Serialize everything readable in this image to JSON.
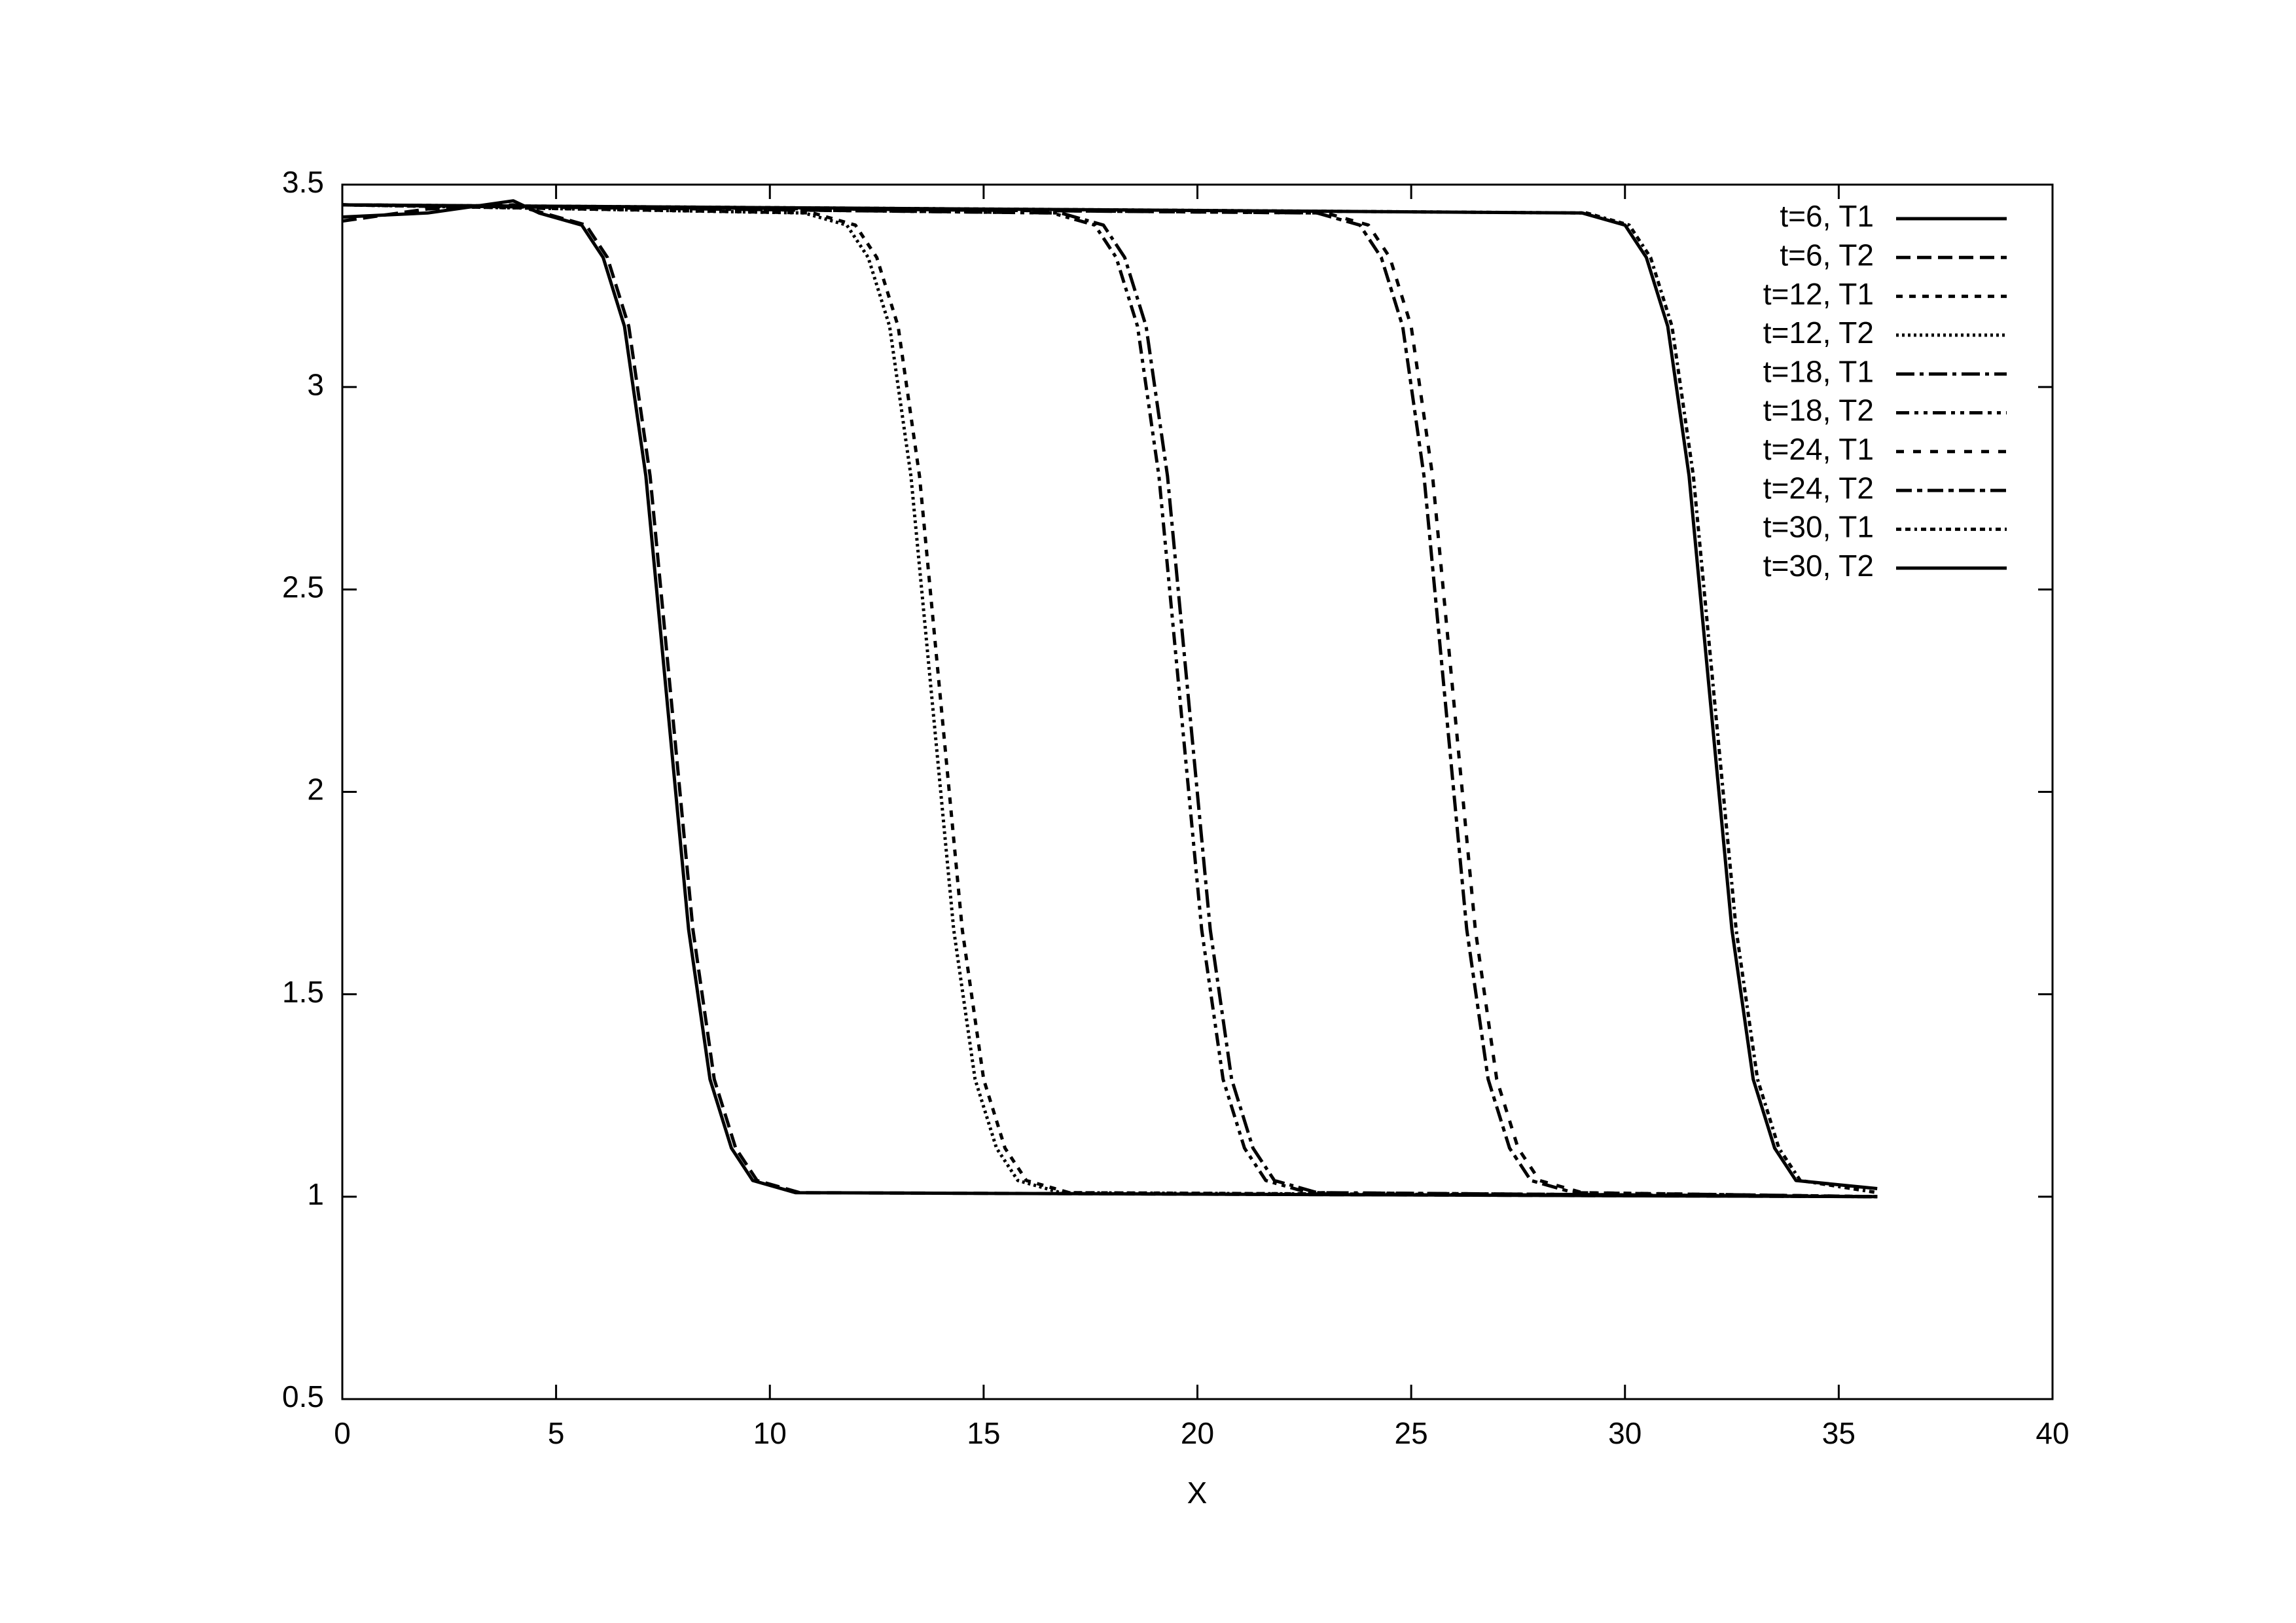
{
  "chart_data": {
    "type": "line",
    "xlabel": "X",
    "xlim": [
      0,
      40
    ],
    "xticks": [
      0,
      5,
      10,
      15,
      20,
      25,
      30,
      35,
      40
    ],
    "ylim": [
      0.5,
      3.5
    ],
    "yticks": [
      0.5,
      1,
      1.5,
      2,
      2.5,
      3,
      3.5
    ],
    "legend": "top-right",
    "series": [
      {
        "name": "t=6,  T1",
        "color": "#000000",
        "dash": "solid",
        "x": [
          0,
          2,
          4,
          4.6,
          5.6,
          6.1,
          6.6,
          7.1,
          7.6,
          8.1,
          8.6,
          9.1,
          9.6,
          10.6,
          35.9
        ],
        "values": [
          3.42,
          3.43,
          3.46,
          3.43,
          3.4,
          3.32,
          3.15,
          2.78,
          2.22,
          1.66,
          1.29,
          1.12,
          1.04,
          1.01,
          1.0
        ]
      },
      {
        "name": "t=6,  T2",
        "color": "#000000",
        "dash": "22 10",
        "x": [
          0,
          2,
          4,
          4.7,
          5.7,
          6.2,
          6.7,
          7.2,
          7.7,
          8.2,
          8.7,
          9.2,
          9.7,
          10.7,
          35.9
        ],
        "values": [
          3.41,
          3.44,
          3.45,
          3.43,
          3.4,
          3.32,
          3.15,
          2.78,
          2.22,
          1.66,
          1.29,
          1.12,
          1.04,
          1.01,
          1.0
        ]
      },
      {
        "name": "t=12,  T1",
        "color": "#000000",
        "dash": "10 10",
        "x": [
          0,
          11,
          12,
          12.5,
          13,
          13.5,
          14,
          14.5,
          15,
          15.5,
          16,
          17,
          35.9
        ],
        "values": [
          3.45,
          3.43,
          3.4,
          3.32,
          3.15,
          2.78,
          2.22,
          1.66,
          1.29,
          1.12,
          1.04,
          1.01,
          1.0
        ]
      },
      {
        "name": "t=12,  T2",
        "color": "#000000",
        "dash": "4 5",
        "x": [
          0,
          10.8,
          11.8,
          12.3,
          12.8,
          13.3,
          13.8,
          14.3,
          14.8,
          15.3,
          15.8,
          16.8,
          35.9
        ],
        "values": [
          3.45,
          3.43,
          3.4,
          3.32,
          3.15,
          2.78,
          2.22,
          1.66,
          1.29,
          1.12,
          1.04,
          1.01,
          1.0
        ]
      },
      {
        "name": "t=18,  T1",
        "color": "#000000",
        "dash": "28 8 6 8",
        "x": [
          0,
          16.8,
          17.8,
          18.3,
          18.8,
          19.3,
          19.8,
          20.3,
          20.8,
          21.3,
          21.8,
          22.8,
          35.9
        ],
        "values": [
          3.45,
          3.43,
          3.4,
          3.32,
          3.15,
          2.78,
          2.22,
          1.66,
          1.29,
          1.12,
          1.04,
          1.01,
          1.0
        ]
      },
      {
        "name": "t=18,  T2",
        "color": "#000000",
        "dash": "20 8 6 8 6 8",
        "x": [
          0,
          16.6,
          17.6,
          18.1,
          18.6,
          19.1,
          19.6,
          20.1,
          20.6,
          21.1,
          21.6,
          22.6,
          35.9
        ],
        "values": [
          3.45,
          3.43,
          3.4,
          3.32,
          3.15,
          2.78,
          2.22,
          1.66,
          1.29,
          1.12,
          1.04,
          1.01,
          1.0
        ]
      },
      {
        "name": "t=24,  T1",
        "color": "#000000",
        "dash": "12 14",
        "x": [
          0,
          23,
          24,
          24.5,
          25,
          25.5,
          26,
          26.5,
          27,
          27.5,
          28,
          29,
          35.9
        ],
        "values": [
          3.45,
          3.43,
          3.4,
          3.32,
          3.15,
          2.78,
          2.22,
          1.66,
          1.29,
          1.12,
          1.04,
          1.01,
          1.0
        ]
      },
      {
        "name": "t=24,  T2",
        "color": "#000000",
        "dash": "24 8 8 8",
        "x": [
          0,
          22.8,
          23.8,
          24.3,
          24.8,
          25.3,
          25.8,
          26.3,
          26.8,
          27.3,
          27.8,
          28.8,
          35.9
        ],
        "values": [
          3.45,
          3.43,
          3.4,
          3.32,
          3.15,
          2.78,
          2.22,
          1.66,
          1.29,
          1.12,
          1.04,
          1.01,
          1.0
        ]
      },
      {
        "name": "t=30,  T1",
        "color": "#000000",
        "dash": "8 6 8 6 4 6",
        "x": [
          0,
          29.1,
          30.1,
          30.6,
          31.1,
          31.6,
          32.1,
          32.6,
          33.1,
          33.6,
          34.1,
          35.9
        ],
        "values": [
          3.45,
          3.43,
          3.4,
          3.32,
          3.15,
          2.78,
          2.22,
          1.66,
          1.29,
          1.12,
          1.04,
          1.01
        ]
      },
      {
        "name": "t=30,  T2",
        "color": "#000000",
        "dash": "solid",
        "x": [
          0,
          29,
          30,
          30.5,
          31,
          31.5,
          32,
          32.5,
          33,
          33.5,
          34,
          35.9
        ],
        "values": [
          3.45,
          3.43,
          3.4,
          3.32,
          3.15,
          2.78,
          2.22,
          1.66,
          1.29,
          1.12,
          1.04,
          1.02
        ]
      }
    ]
  }
}
